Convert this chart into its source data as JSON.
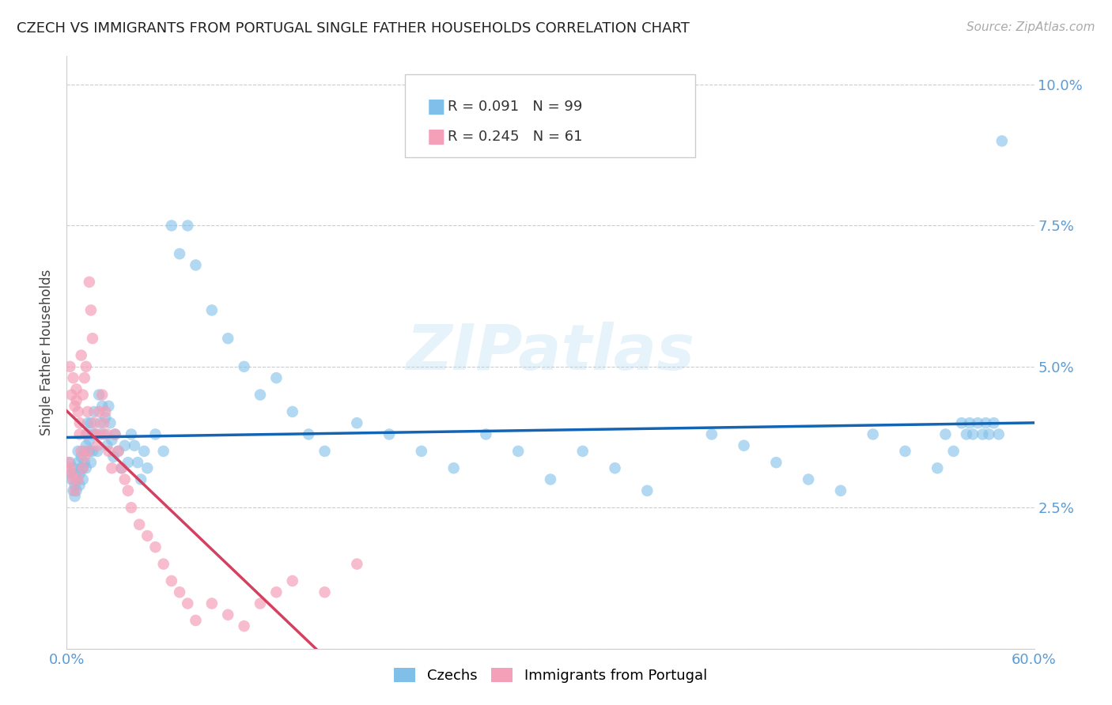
{
  "title": "CZECH VS IMMIGRANTS FROM PORTUGAL SINGLE FATHER HOUSEHOLDS CORRELATION CHART",
  "source": "Source: ZipAtlas.com",
  "ylabel": "Single Father Households",
  "xlim": [
    0.0,
    0.6
  ],
  "ylim": [
    0.0,
    0.105
  ],
  "yticks": [
    0.0,
    0.025,
    0.05,
    0.075,
    0.1
  ],
  "ytick_labels": [
    "",
    "2.5%",
    "5.0%",
    "7.5%",
    "10.0%"
  ],
  "xticks": [
    0.0,
    0.1,
    0.2,
    0.3,
    0.4,
    0.5,
    0.6
  ],
  "xtick_labels": [
    "0.0%",
    "",
    "",
    "",
    "",
    "",
    "60.0%"
  ],
  "legend_czech_R": "0.091",
  "legend_czech_N": "99",
  "legend_portugal_R": "0.245",
  "legend_portugal_N": "61",
  "blue_color": "#7fbfea",
  "pink_color": "#f4a0b8",
  "line_blue": "#1464b4",
  "line_pink": "#d44060",
  "axis_color": "#5b9bd5",
  "title_color": "#222222",
  "watermark": "ZIPatlas",
  "czech_x": [
    0.002,
    0.003,
    0.003,
    0.004,
    0.004,
    0.005,
    0.005,
    0.005,
    0.006,
    0.006,
    0.007,
    0.007,
    0.008,
    0.008,
    0.009,
    0.009,
    0.01,
    0.01,
    0.011,
    0.011,
    0.012,
    0.012,
    0.013,
    0.013,
    0.014,
    0.014,
    0.015,
    0.015,
    0.016,
    0.016,
    0.017,
    0.018,
    0.019,
    0.02,
    0.021,
    0.022,
    0.023,
    0.024,
    0.025,
    0.026,
    0.027,
    0.028,
    0.029,
    0.03,
    0.032,
    0.034,
    0.036,
    0.038,
    0.04,
    0.042,
    0.044,
    0.046,
    0.048,
    0.05,
    0.055,
    0.06,
    0.065,
    0.07,
    0.075,
    0.08,
    0.09,
    0.1,
    0.11,
    0.12,
    0.13,
    0.14,
    0.15,
    0.16,
    0.18,
    0.2,
    0.22,
    0.24,
    0.26,
    0.28,
    0.3,
    0.32,
    0.34,
    0.36,
    0.4,
    0.42,
    0.44,
    0.46,
    0.48,
    0.5,
    0.52,
    0.54,
    0.545,
    0.55,
    0.555,
    0.558,
    0.56,
    0.562,
    0.565,
    0.568,
    0.57,
    0.572,
    0.575,
    0.578,
    0.58
  ],
  "czech_y": [
    0.033,
    0.031,
    0.03,
    0.032,
    0.028,
    0.029,
    0.027,
    0.031,
    0.03,
    0.028,
    0.033,
    0.035,
    0.031,
    0.029,
    0.032,
    0.034,
    0.03,
    0.032,
    0.035,
    0.033,
    0.036,
    0.032,
    0.04,
    0.038,
    0.035,
    0.037,
    0.033,
    0.04,
    0.038,
    0.035,
    0.042,
    0.038,
    0.035,
    0.045,
    0.04,
    0.043,
    0.038,
    0.041,
    0.036,
    0.043,
    0.04,
    0.037,
    0.034,
    0.038,
    0.035,
    0.032,
    0.036,
    0.033,
    0.038,
    0.036,
    0.033,
    0.03,
    0.035,
    0.032,
    0.038,
    0.035,
    0.075,
    0.07,
    0.075,
    0.068,
    0.06,
    0.055,
    0.05,
    0.045,
    0.048,
    0.042,
    0.038,
    0.035,
    0.04,
    0.038,
    0.035,
    0.032,
    0.038,
    0.035,
    0.03,
    0.035,
    0.032,
    0.028,
    0.038,
    0.036,
    0.033,
    0.03,
    0.028,
    0.038,
    0.035,
    0.032,
    0.038,
    0.035,
    0.04,
    0.038,
    0.04,
    0.038,
    0.04,
    0.038,
    0.04,
    0.038,
    0.04,
    0.038,
    0.09
  ],
  "portugal_x": [
    0.001,
    0.002,
    0.002,
    0.003,
    0.003,
    0.004,
    0.004,
    0.005,
    0.005,
    0.006,
    0.006,
    0.007,
    0.007,
    0.008,
    0.008,
    0.009,
    0.009,
    0.01,
    0.01,
    0.011,
    0.011,
    0.012,
    0.012,
    0.013,
    0.013,
    0.014,
    0.015,
    0.016,
    0.017,
    0.018,
    0.019,
    0.02,
    0.021,
    0.022,
    0.023,
    0.024,
    0.025,
    0.026,
    0.028,
    0.03,
    0.032,
    0.034,
    0.036,
    0.038,
    0.04,
    0.045,
    0.05,
    0.055,
    0.06,
    0.065,
    0.07,
    0.075,
    0.08,
    0.09,
    0.1,
    0.11,
    0.12,
    0.13,
    0.14,
    0.16,
    0.18
  ],
  "portugal_y": [
    0.033,
    0.05,
    0.032,
    0.045,
    0.031,
    0.048,
    0.03,
    0.043,
    0.028,
    0.046,
    0.044,
    0.042,
    0.03,
    0.04,
    0.038,
    0.052,
    0.035,
    0.045,
    0.032,
    0.048,
    0.034,
    0.05,
    0.038,
    0.042,
    0.035,
    0.065,
    0.06,
    0.055,
    0.04,
    0.038,
    0.036,
    0.042,
    0.038,
    0.045,
    0.04,
    0.042,
    0.038,
    0.035,
    0.032,
    0.038,
    0.035,
    0.032,
    0.03,
    0.028,
    0.025,
    0.022,
    0.02,
    0.018,
    0.015,
    0.012,
    0.01,
    0.008,
    0.005,
    0.008,
    0.006,
    0.004,
    0.008,
    0.01,
    0.012,
    0.01,
    0.015
  ]
}
